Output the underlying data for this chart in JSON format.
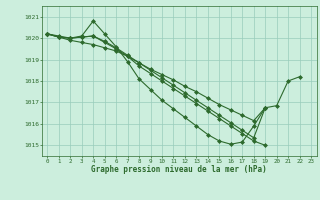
{
  "title": "Graphe pression niveau de la mer (hPa)",
  "background_color": "#cceedd",
  "grid_color": "#99ccbb",
  "line_color": "#2d6a2d",
  "marker_color": "#2d6a2d",
  "xlim": [
    -0.5,
    23.5
  ],
  "ylim": [
    1014.5,
    1021.5
  ],
  "yticks": [
    1015,
    1016,
    1017,
    1018,
    1019,
    1020,
    1021
  ],
  "xticks": [
    0,
    1,
    2,
    3,
    4,
    5,
    6,
    7,
    8,
    9,
    10,
    11,
    12,
    13,
    14,
    15,
    16,
    17,
    18,
    19,
    20,
    21,
    22,
    23
  ],
  "series": [
    [
      1020.2,
      1020.1,
      1020.0,
      1020.1,
      1020.8,
      1020.2,
      1019.6,
      1018.9,
      1018.1,
      1017.6,
      1017.1,
      1016.7,
      1016.3,
      1015.9,
      1015.5,
      1015.2,
      1015.05,
      1015.15,
      1015.9,
      1016.75,
      1016.85,
      1018.0,
      1018.2,
      null
    ],
    [
      1020.2,
      1020.05,
      1020.0,
      1020.05,
      1020.1,
      1019.8,
      1019.5,
      1019.15,
      1018.7,
      1018.35,
      1018.0,
      1017.65,
      1017.3,
      1016.95,
      1016.6,
      1016.25,
      1015.9,
      1015.55,
      1015.2,
      1015.0,
      null,
      null,
      null,
      null
    ],
    [
      1020.2,
      1020.05,
      1019.9,
      1019.8,
      1019.7,
      1019.55,
      1019.4,
      1019.15,
      1018.85,
      1018.55,
      1018.3,
      1018.05,
      1017.75,
      1017.5,
      1017.2,
      1016.9,
      1016.65,
      1016.4,
      1016.15,
      1016.75,
      null,
      null,
      null,
      null
    ],
    [
      1020.2,
      1020.05,
      1020.0,
      1020.05,
      1020.1,
      1019.85,
      1019.55,
      1019.2,
      1018.85,
      1018.5,
      1018.15,
      1017.8,
      1017.45,
      1017.1,
      1016.75,
      1016.4,
      1016.05,
      1015.7,
      1015.35,
      1016.75,
      null,
      null,
      null,
      null
    ]
  ]
}
